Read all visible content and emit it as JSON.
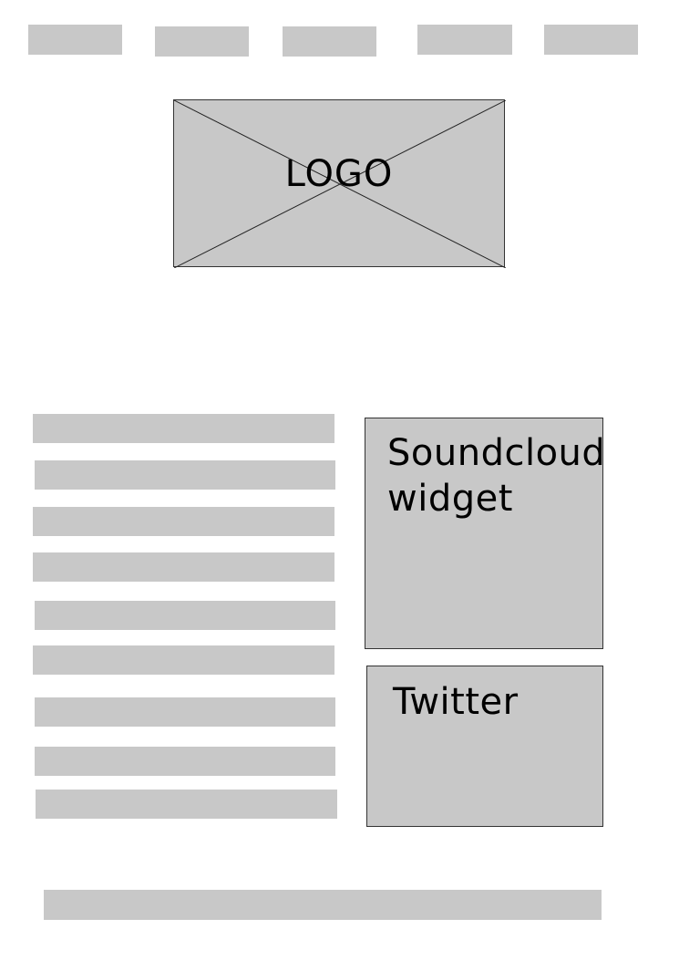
{
  "logo": {
    "label": "LOGO"
  },
  "widgets": {
    "soundcloud": {
      "line1": "Soundcloud",
      "line2": "widget"
    },
    "twitter": {
      "label": "Twitter"
    }
  },
  "colors": {
    "placeholder_fill": "#c8c8c8",
    "border": "#333333",
    "background": "#ffffff",
    "text": "#000000"
  }
}
